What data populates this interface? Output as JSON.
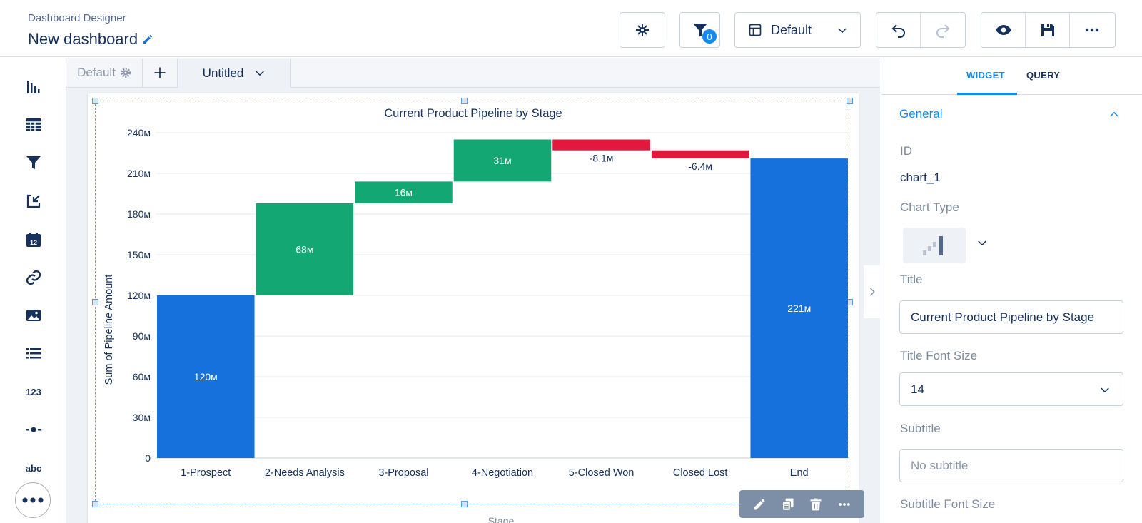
{
  "header": {
    "app_name": "Dashboard Designer",
    "dashboard_title": "New dashboard",
    "filter_count": "0",
    "layout_select": "Default"
  },
  "canvas": {
    "tabs": [
      {
        "label": "Default"
      },
      {
        "label": "Untitled"
      }
    ]
  },
  "right_panel": {
    "tabs": [
      "WIDGET",
      "QUERY"
    ],
    "active_tab": "WIDGET",
    "section": "General",
    "id_label": "ID",
    "id_value": "chart_1",
    "chart_type_label": "Chart Type",
    "title_label": "Title",
    "title_value": "Current Product Pipeline by Stage",
    "title_font_size_label": "Title Font Size",
    "title_font_size_value": "14",
    "subtitle_label": "Subtitle",
    "subtitle_placeholder": "No subtitle",
    "subtitle_font_size_label": "Subtitle Font Size"
  },
  "left_nav": {
    "icons": [
      "bar-chart-icon",
      "table-icon",
      "filter-icon",
      "link-out-icon",
      "calendar-icon",
      "link-icon",
      "image-icon",
      "list-icon",
      "number-icon",
      "timeline-icon",
      "text-icon",
      "more-icon"
    ],
    "number_label": "123",
    "text_label": "abc",
    "calendar_day": "12"
  },
  "colors": {
    "accent": "#1589ee",
    "increase": "#13a873",
    "decrease": "#e2193d",
    "total": "#1671dc"
  },
  "chart_data": {
    "type": "bar",
    "subtype": "waterfall",
    "title": "Current Product Pipeline by Stage",
    "xlabel": "Stage",
    "ylabel": "Sum of Pipeline Amount",
    "ylim": [
      0,
      240
    ],
    "yticks": [
      0,
      30,
      60,
      90,
      120,
      150,
      180,
      210,
      240
    ],
    "ytick_labels": [
      "0",
      "30м",
      "60м",
      "90м",
      "120м",
      "150м",
      "180м",
      "210м",
      "240м"
    ],
    "categories": [
      "1-Prospect",
      "2-Needs Analysis",
      "3-Proposal",
      "4-Negotiation",
      "5-Closed Won",
      "Closed Lost",
      "End"
    ],
    "bars": [
      {
        "start": 0,
        "end": 120,
        "label": "120м",
        "kind": "total"
      },
      {
        "start": 120,
        "end": 188,
        "label": "68м",
        "kind": "increase"
      },
      {
        "start": 188,
        "end": 204,
        "label": "16м",
        "kind": "increase"
      },
      {
        "start": 204,
        "end": 235,
        "label": "31м",
        "kind": "increase"
      },
      {
        "start": 235,
        "end": 227,
        "label": "-8.1м",
        "kind": "decrease"
      },
      {
        "start": 227,
        "end": 221,
        "label": "-6.4м",
        "kind": "decrease"
      },
      {
        "start": 0,
        "end": 221,
        "label": "221м",
        "kind": "total"
      }
    ],
    "grid": true
  }
}
